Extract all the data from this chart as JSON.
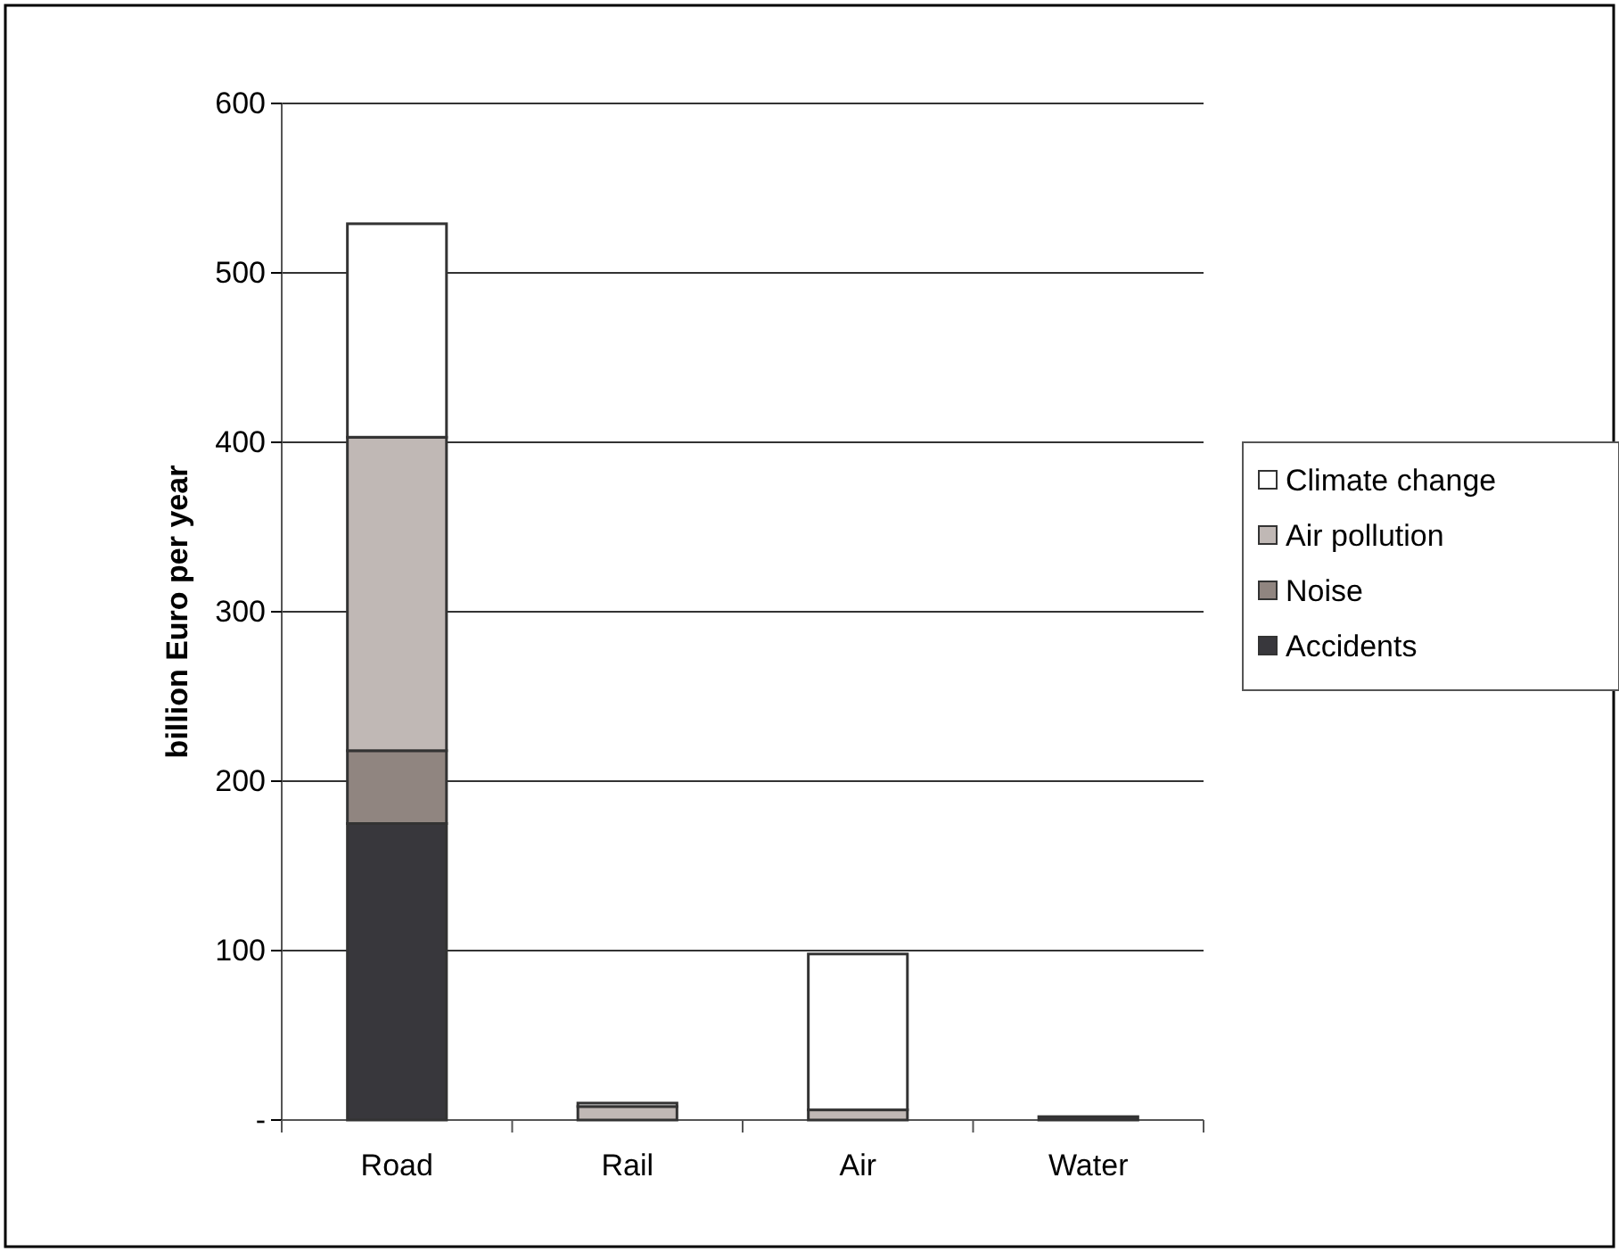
{
  "chart_data": {
    "type": "bar",
    "stacked": true,
    "ylabel": "billion Euro per year",
    "categories": [
      "Road",
      "Rail",
      "Air",
      "Water"
    ],
    "series": [
      {
        "name": "Accidents",
        "color": "#38373c",
        "values": [
          175,
          null,
          null,
          2
        ]
      },
      {
        "name": "Noise",
        "color": "#908580",
        "values": [
          43,
          null,
          null,
          null
        ]
      },
      {
        "name": "Air pollution",
        "color": "#c0b8b5",
        "values": [
          185,
          8,
          6,
          null
        ]
      },
      {
        "name": "Climate change",
        "color": "#ffffff",
        "values": [
          126,
          2,
          92,
          null
        ]
      }
    ],
    "ylim": [
      0,
      600
    ],
    "yticks": [
      {
        "value": 0,
        "label": "-"
      },
      100,
      200,
      300,
      400,
      500,
      600
    ],
    "grid": "y",
    "legend": "right"
  }
}
